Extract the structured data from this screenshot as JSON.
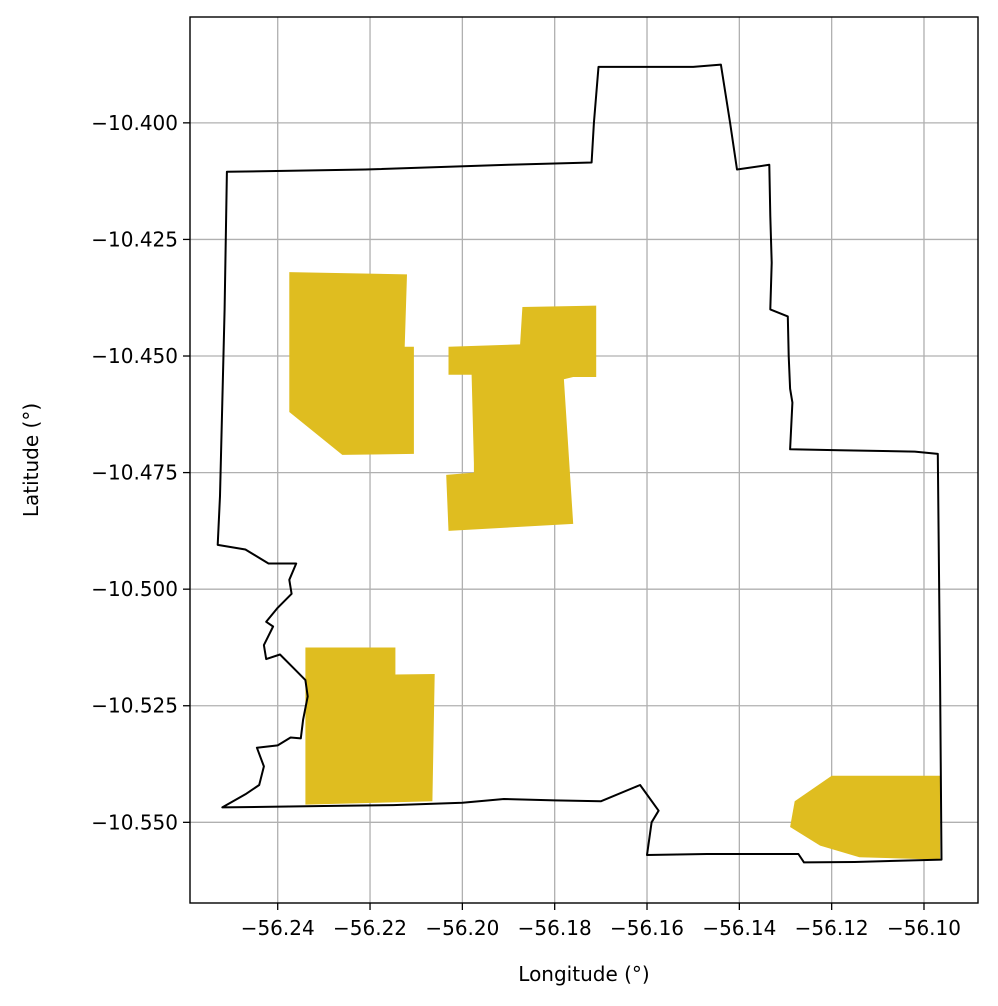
{
  "chart_data": {
    "type": "map",
    "title": "",
    "xlabel": "Longitude (°)",
    "ylabel": "Latitude (°)",
    "xlim": [
      -56.259,
      -56.0883
    ],
    "ylim": [
      -10.5673,
      -10.3773
    ],
    "xticks": [
      -56.24,
      -56.22,
      -56.2,
      -56.18,
      -56.16,
      -56.14,
      -56.12,
      -56.1
    ],
    "xtick_labels": [
      "−56.24",
      "−56.22",
      "−56.20",
      "−56.18",
      "−56.16",
      "−56.14",
      "−56.12",
      "−56.10"
    ],
    "yticks": [
      -10.4,
      -10.425,
      -10.45,
      -10.475,
      -10.5,
      -10.525,
      -10.55
    ],
    "ytick_labels": [
      "−10.400",
      "−10.425",
      "−10.450",
      "−10.475",
      "−10.500",
      "−10.525",
      "−10.550"
    ],
    "grid": true,
    "boundary_color": "#000000",
    "fill_color": "#dfbd20",
    "boundary": [
      [
        -56.251,
        -10.4105
      ],
      [
        -56.221,
        -10.41
      ],
      [
        -56.19,
        -10.409
      ],
      [
        -56.172,
        -10.4085
      ],
      [
        -56.1715,
        -10.4
      ],
      [
        -56.171,
        -10.394
      ],
      [
        -56.1705,
        -10.388
      ],
      [
        -56.15,
        -10.388
      ],
      [
        -56.144,
        -10.3875
      ],
      [
        -56.142,
        -10.4
      ],
      [
        -56.1405,
        -10.41
      ],
      [
        -56.1335,
        -10.409
      ],
      [
        -56.1333,
        -10.42
      ],
      [
        -56.133,
        -10.43
      ],
      [
        -56.1333,
        -10.44
      ],
      [
        -56.1295,
        -10.4415
      ],
      [
        -56.1293,
        -10.45
      ],
      [
        -56.129,
        -10.457
      ],
      [
        -56.1285,
        -10.46
      ],
      [
        -56.129,
        -10.47
      ],
      [
        -56.1183,
        -10.4702
      ],
      [
        -56.102,
        -10.4705
      ],
      [
        -56.097,
        -10.471
      ],
      [
        -56.0965,
        -10.52
      ],
      [
        -56.0962,
        -10.558
      ],
      [
        -56.115,
        -10.5585
      ],
      [
        -56.126,
        -10.5586
      ],
      [
        -56.1272,
        -10.5568
      ],
      [
        -56.147,
        -10.5568
      ],
      [
        -56.16,
        -10.557
      ],
      [
        -56.159,
        -10.55
      ],
      [
        -56.1575,
        -10.5475
      ],
      [
        -56.1615,
        -10.542
      ],
      [
        -56.17,
        -10.5455
      ],
      [
        -56.18,
        -10.5453
      ],
      [
        -56.191,
        -10.545
      ],
      [
        -56.2,
        -10.5458
      ],
      [
        -56.215,
        -10.5463
      ],
      [
        -56.23,
        -10.5465
      ],
      [
        -56.252,
        -10.5468
      ],
      [
        -56.247,
        -10.544
      ],
      [
        -56.244,
        -10.542
      ],
      [
        -56.243,
        -10.538
      ],
      [
        -56.2445,
        -10.534
      ],
      [
        -56.24,
        -10.5335
      ],
      [
        -56.2372,
        -10.5318
      ],
      [
        -56.235,
        -10.532
      ],
      [
        -56.2345,
        -10.528
      ],
      [
        -56.2335,
        -10.523
      ],
      [
        -56.234,
        -10.5195
      ],
      [
        -56.2365,
        -10.517
      ],
      [
        -56.2395,
        -10.514
      ],
      [
        -56.2425,
        -10.515
      ],
      [
        -56.243,
        -10.512
      ],
      [
        -56.241,
        -10.508
      ],
      [
        -56.2425,
        -10.507
      ],
      [
        -56.24,
        -10.504
      ],
      [
        -56.237,
        -10.501
      ],
      [
        -56.2375,
        -10.498
      ],
      [
        -56.236,
        -10.4945
      ],
      [
        -56.242,
        -10.4945
      ],
      [
        -56.247,
        -10.4915
      ],
      [
        -56.253,
        -10.4905
      ],
      [
        -56.2525,
        -10.48
      ],
      [
        -56.252,
        -10.46
      ],
      [
        -56.2515,
        -10.44
      ],
      [
        -56.251,
        -10.4105
      ]
    ],
    "parcels": [
      [
        [
          -56.2375,
          -10.432
        ],
        [
          -56.212,
          -10.4325
        ],
        [
          -56.2125,
          -10.448
        ],
        [
          -56.2105,
          -10.448
        ],
        [
          -56.2105,
          -10.471
        ],
        [
          -56.226,
          -10.4712
        ],
        [
          -56.2375,
          -10.462
        ]
      ],
      [
        [
          -56.203,
          -10.448
        ],
        [
          -56.1875,
          -10.4475
        ],
        [
          -56.187,
          -10.4395
        ],
        [
          -56.171,
          -10.4392
        ],
        [
          -56.171,
          -10.453
        ],
        [
          -56.171,
          -10.4545
        ],
        [
          -56.1735,
          -10.4545
        ],
        [
          -56.176,
          -10.4545
        ],
        [
          -56.178,
          -10.455
        ],
        [
          -56.176,
          -10.486
        ],
        [
          -56.203,
          -10.4875
        ],
        [
          -56.2035,
          -10.4755
        ],
        [
          -56.1975,
          -10.475
        ],
        [
          -56.1975,
          -10.473
        ],
        [
          -56.198,
          -10.454
        ],
        [
          -56.203,
          -10.454
        ]
      ],
      [
        [
          -56.234,
          -10.5125
        ],
        [
          -56.2145,
          -10.5125
        ],
        [
          -56.2145,
          -10.5183
        ],
        [
          -56.206,
          -10.5182
        ],
        [
          -56.2065,
          -10.5455
        ],
        [
          -56.234,
          -10.5462
        ]
      ],
      [
        [
          -56.12,
          -10.54
        ],
        [
          -56.0965,
          -10.54
        ],
        [
          -56.0965,
          -10.558
        ],
        [
          -56.114,
          -10.5575
        ],
        [
          -56.1225,
          -10.555
        ],
        [
          -56.129,
          -10.551
        ],
        [
          -56.128,
          -10.5455
        ]
      ]
    ]
  }
}
